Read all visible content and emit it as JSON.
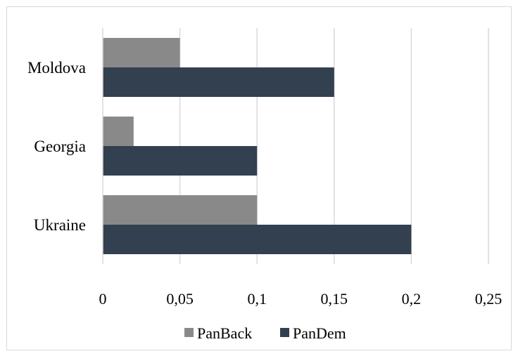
{
  "chart_data": {
    "type": "bar",
    "orientation": "horizontal",
    "categories": [
      "Moldova",
      "Georgia",
      "Ukraine"
    ],
    "series": [
      {
        "name": "PanBack",
        "color": "#898989",
        "values": [
          0.05,
          0.02,
          0.1
        ]
      },
      {
        "name": "PanDem",
        "color": "#334050",
        "values": [
          0.15,
          0.1,
          0.2
        ]
      }
    ],
    "xlim": [
      0,
      0.25
    ],
    "xticks": [
      0,
      0.05,
      0.1,
      0.15,
      0.2,
      0.25
    ],
    "xtick_labels": [
      "0",
      "0,05",
      "0,1",
      "0,15",
      "0,2",
      "0,25"
    ],
    "grid": "vertical",
    "legend_position": "bottom",
    "title": "",
    "xlabel": "",
    "ylabel": ""
  }
}
